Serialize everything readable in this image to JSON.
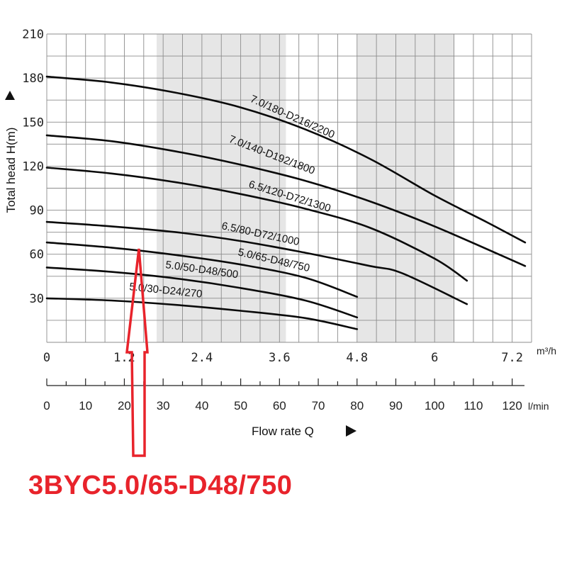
{
  "chart_data": {
    "type": "line",
    "title": "",
    "ylabel": "Total head H(m)",
    "xlabel": "Flow rate Q",
    "ylim": [
      0,
      210
    ],
    "yticks": [
      30,
      60,
      90,
      120,
      150,
      180,
      210
    ],
    "xlim_m3h": [
      0,
      7.5
    ],
    "xticks_m3h": [
      "0",
      "1.2",
      "2.4",
      "3.6",
      "4.8",
      "6",
      "7.2"
    ],
    "x_unit_top": "m³/h",
    "xlim_lmin": [
      0,
      125
    ],
    "xticks_lmin": [
      "0",
      "10",
      "20",
      "30",
      "40",
      "50",
      "60",
      "70",
      "80",
      "90",
      "100",
      "110",
      "120"
    ],
    "x_unit_bottom": "l/min",
    "grid": true,
    "shaded_bands_m3h": [
      [
        1.7,
        2.7
      ],
      [
        2.7,
        3.7
      ],
      [
        4.8,
        6.3
      ]
    ],
    "series": [
      {
        "name": "7.0/180-D216/2200",
        "x": [
          0,
          1.0,
          2.0,
          3.0,
          4.0,
          5.0,
          6.0,
          6.8,
          7.4
        ],
        "y": [
          181,
          177,
          170,
          160,
          145,
          125,
          100,
          82,
          68
        ]
      },
      {
        "name": "7.0/140-D192/1800",
        "x": [
          0,
          1.0,
          2.0,
          3.0,
          4.0,
          5.0,
          6.0,
          7.4
        ],
        "y": [
          141,
          137,
          130,
          121,
          110,
          96,
          79,
          52
        ]
      },
      {
        "name": "6.5/120-D72/1300",
        "x": [
          0,
          1.0,
          2.0,
          3.0,
          4.0,
          5.0,
          6.0,
          6.5
        ],
        "y": [
          119,
          115,
          109,
          101,
          91,
          78,
          57,
          42
        ]
      },
      {
        "name": "6.5/80-D72/1000",
        "x": [
          0,
          1.0,
          2.0,
          3.0,
          4.0,
          5.0,
          5.5,
          6.5
        ],
        "y": [
          82,
          79,
          75,
          69,
          61,
          52,
          47,
          26
        ]
      },
      {
        "name": "5.0/65-D48/750",
        "x": [
          0,
          1.0,
          2.0,
          3.0,
          4.0,
          4.8
        ],
        "y": [
          68,
          64.5,
          59.5,
          53,
          44,
          31
        ]
      },
      {
        "name": "5.0/50-D48/500",
        "x": [
          0,
          1.0,
          2.0,
          3.0,
          4.0,
          4.8
        ],
        "y": [
          51,
          48,
          43.5,
          37,
          28.5,
          17
        ]
      },
      {
        "name": "5.0/30-D24/270",
        "x": [
          0,
          1.0,
          2.0,
          3.0,
          4.0,
          4.8
        ],
        "y": [
          30,
          28.5,
          25.5,
          21.5,
          16.5,
          9
        ]
      }
    ],
    "annotation": {
      "text": "3BYC5.0/65-D48/750",
      "color": "#e8232b",
      "points_to_m3h": 1.5
    }
  }
}
